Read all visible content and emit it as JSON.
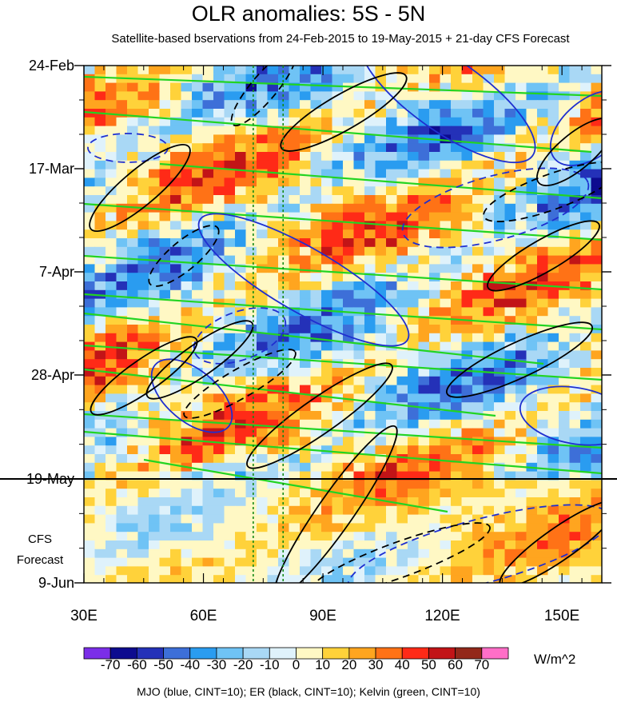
{
  "chart_data": {
    "type": "heatmap",
    "title": "OLR anomalies: 5S - 5N",
    "subtitle": "Satellite-based bservations from 24-Feb-2015 to 19-May-2015 + 21-day CFS Forecast",
    "x": {
      "ticks": [
        "30E",
        "60E",
        "90E",
        "120E",
        "150E"
      ],
      "tick_values": [
        30,
        60,
        90,
        120,
        150
      ],
      "range": [
        30,
        160
      ]
    },
    "y": {
      "ticks": [
        "24-Feb",
        "17-Mar",
        "7-Apr",
        "28-Apr",
        "19-May",
        "9-Jun"
      ],
      "range": [
        "2015-02-24",
        "2015-06-09"
      ]
    },
    "observation_end": "19-May",
    "forecast_label": [
      "CFS",
      "Forecast"
    ],
    "reference_longitudes": [
      72.5,
      80
    ],
    "colorbar": {
      "units": "W/m^2",
      "labels": [
        "-70",
        "-60",
        "-50",
        "-40",
        "-30",
        "-20",
        "-10",
        "0",
        "10",
        "20",
        "30",
        "40",
        "50",
        "60",
        "70"
      ],
      "colors": [
        "#7b2ee8",
        "#0d0b8f",
        "#2431b8",
        "#3d6fd8",
        "#2a9cf0",
        "#6fc3f5",
        "#a9d8f5",
        "#dff2fb",
        "#fff8c4",
        "#ffd23a",
        "#ffa51f",
        "#ff7216",
        "#ff2a17",
        "#c21417",
        "#93281a",
        "#ff6ec7"
      ]
    },
    "contours_legend": "MJO (blue, CINT=10); ER (black, CINT=10); Kelvin (green, CINT=10)",
    "series_colors": {
      "MJO": "#1f2fd0",
      "ER": "#000000",
      "Kelvin": "#22d422"
    }
  }
}
